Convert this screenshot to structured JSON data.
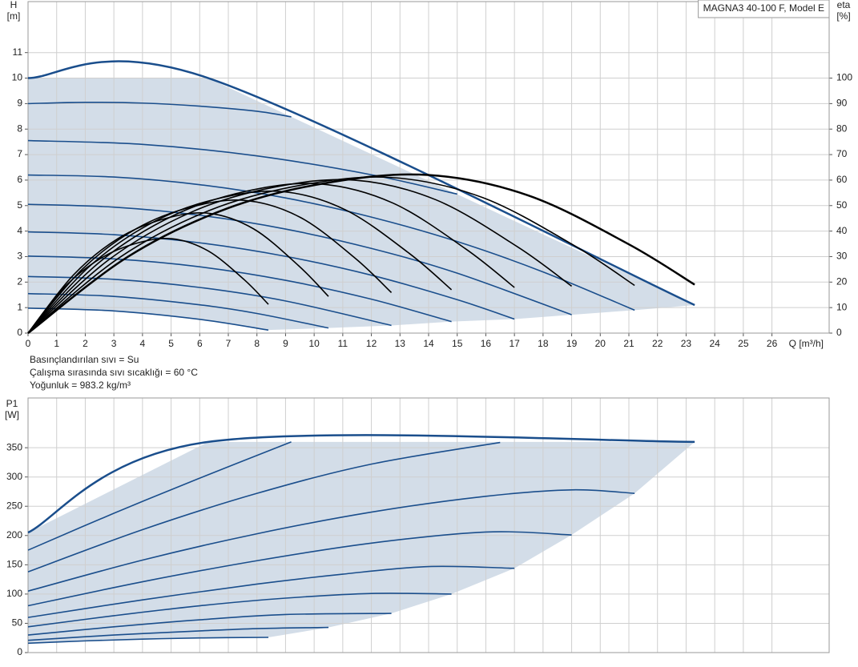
{
  "chart_data": [
    {
      "type": "line",
      "title": "MAGNA3 40-100 F, Model E",
      "y_label": "H",
      "y_unit": "[m]",
      "y2_label": "eta",
      "y2_unit": "[%]",
      "x_label": "Q [m³/h]",
      "notes": [
        "Basınçlandırılan sıvı = Su",
        "Çalışma sırasında sıvı sıcaklığı = 60 °C",
        "Yoğunluk = 983.2 kg/m³"
      ],
      "xlim": [
        0,
        28
      ],
      "xticks": [
        0,
        1,
        2,
        3,
        4,
        5,
        6,
        7,
        8,
        9,
        10,
        11,
        12,
        13,
        14,
        15,
        16,
        17,
        18,
        19,
        20,
        21,
        22,
        23,
        24,
        25,
        26
      ],
      "ylim": [
        0,
        13
      ],
      "yticks": [
        0,
        1,
        2,
        3,
        4,
        5,
        6,
        7,
        8,
        9,
        10,
        11
      ],
      "y2lim": [
        0,
        130
      ],
      "y2ticks": [
        0,
        10,
        20,
        30,
        40,
        50,
        60,
        70,
        80,
        90,
        100
      ],
      "grid": true,
      "fill_color": "#d3dde8",
      "series": [
        {
          "color": "#1a4e8c",
          "x": [
            0,
            6.3,
            23.3
          ],
          "values": [
            10,
            10,
            1.1
          ]
        },
        {
          "color": "#1a4e8c",
          "x": [
            0,
            2,
            4,
            6,
            8,
            9.2
          ],
          "values": [
            9.0,
            9.05,
            9.02,
            8.9,
            8.7,
            8.48
          ]
        },
        {
          "color": "#1a4e8c",
          "x": [
            0,
            4,
            8,
            12,
            15
          ],
          "values": [
            7.55,
            7.4,
            6.95,
            6.21,
            5.45
          ]
        },
        {
          "color": "#1a4e8c",
          "x": [
            0,
            3,
            6,
            9,
            12,
            15,
            18,
            21.2
          ],
          "values": [
            6.2,
            6.12,
            5.82,
            5.3,
            4.55,
            3.59,
            2.4,
            0.9
          ]
        },
        {
          "color": "#1a4e8c",
          "x": [
            0,
            3,
            6,
            9,
            12,
            15,
            19
          ],
          "values": [
            5.05,
            4.94,
            4.62,
            4.08,
            3.32,
            2.35,
            0.72
          ]
        },
        {
          "color": "#1a4e8c",
          "x": [
            0,
            3,
            6,
            9,
            12,
            15,
            17
          ],
          "values": [
            3.97,
            3.86,
            3.54,
            3.01,
            2.27,
            1.31,
            0.55
          ]
        },
        {
          "color": "#1a4e8c",
          "x": [
            0,
            3,
            6,
            9,
            12,
            14.8
          ],
          "values": [
            3.02,
            2.91,
            2.6,
            2.07,
            1.33,
            0.45
          ]
        },
        {
          "color": "#1a4e8c",
          "x": [
            0,
            3,
            6,
            9,
            12.7
          ],
          "values": [
            2.22,
            2.11,
            1.79,
            1.26,
            0.3
          ]
        },
        {
          "color": "#1a4e8c",
          "x": [
            0,
            3,
            6,
            8,
            10.5
          ],
          "values": [
            1.55,
            1.44,
            1.11,
            0.77,
            0.2
          ]
        },
        {
          "color": "#1a4e8c",
          "x": [
            0,
            3,
            6,
            8.4
          ],
          "values": [
            0.98,
            0.87,
            0.54,
            0.12
          ]
        },
        {
          "color": "#000000",
          "axis": "y2",
          "x": [
            0,
            3.5,
            6.99,
            10.49,
            13.98,
            17.48,
            20.97,
            23.3
          ],
          "values": [
            0,
            30,
            49,
            59,
            62,
            54,
            35,
            19
          ]
        },
        {
          "color": "#000000",
          "axis": "y2",
          "x": [
            0,
            3.18,
            6.36,
            9.54,
            12.72,
            15.9,
            19.08,
            21.2
          ],
          "values": [
            0,
            29.5,
            48.2,
            58.0,
            61,
            53.1,
            34.4,
            18.7
          ]
        },
        {
          "color": "#000000",
          "axis": "y2",
          "x": [
            0,
            2.85,
            5.7,
            8.55,
            11.4,
            14.25,
            17.1,
            19
          ],
          "values": [
            0,
            29.0,
            47.4,
            57.1,
            60,
            52.3,
            33.9,
            18.4
          ]
        },
        {
          "color": "#000000",
          "axis": "y2",
          "x": [
            0,
            2.55,
            5.1,
            7.65,
            10.2,
            12.75,
            15.3,
            17
          ],
          "values": [
            0,
            28.3,
            46.2,
            55.7,
            58.5,
            51,
            33,
            17.9
          ]
        },
        {
          "color": "#000000",
          "axis": "y2",
          "x": [
            0,
            2.22,
            4.44,
            6.66,
            8.88,
            11.1,
            13.32,
            14.8
          ],
          "values": [
            0,
            26.9,
            43.9,
            52.8,
            55.5,
            48.3,
            31.3,
            17.0
          ]
        },
        {
          "color": "#000000",
          "axis": "y2",
          "x": [
            0,
            1.91,
            3.81,
            5.72,
            7.62,
            9.53,
            11.43,
            12.7
          ],
          "values": [
            0,
            25.2,
            41.1,
            49.5,
            52,
            45.3,
            29.4,
            15.9
          ]
        },
        {
          "color": "#000000",
          "axis": "y2",
          "x": [
            0,
            1.58,
            3.15,
            4.73,
            6.3,
            7.88,
            9.45,
            10.5
          ],
          "values": [
            0,
            22.7,
            37.1,
            44.7,
            47,
            40.9,
            26.5,
            14.4
          ]
        },
        {
          "color": "#000000",
          "axis": "y2",
          "x": [
            0,
            1.26,
            2.52,
            3.78,
            5.04,
            6.3,
            7.56,
            8.4
          ],
          "values": [
            0,
            17.9,
            29.2,
            35.2,
            37,
            32.2,
            20.9,
            11.3
          ]
        }
      ]
    },
    {
      "type": "line",
      "y_label": "P1",
      "y_unit": "[W]",
      "xlim": [
        0,
        28
      ],
      "ylim": [
        0,
        435
      ],
      "yticks": [
        0,
        50,
        100,
        150,
        200,
        250,
        300,
        350
      ],
      "grid": true,
      "fill_color": "#d3dde8",
      "series": [
        {
          "color": "#1a4e8c",
          "x": [
            0,
            6.3,
            23.3
          ],
          "values": [
            205,
            360,
            360
          ]
        },
        {
          "color": "#1a4e8c",
          "x": [
            0,
            3,
            6,
            9.2
          ],
          "values": [
            175,
            238,
            298,
            360
          ]
        },
        {
          "color": "#1a4e8c",
          "x": [
            0,
            4,
            8,
            12,
            16.5
          ],
          "values": [
            138,
            210,
            272,
            322,
            359
          ]
        },
        {
          "color": "#1a4e8c",
          "x": [
            0,
            4,
            8,
            12,
            16,
            19,
            21.2
          ],
          "values": [
            105,
            158,
            203,
            240,
            267,
            278,
            272
          ]
        },
        {
          "color": "#1a4e8c",
          "x": [
            0,
            4,
            8,
            12,
            16,
            19
          ],
          "values": [
            80,
            121,
            157,
            187,
            206,
            201
          ]
        },
        {
          "color": "#1a4e8c",
          "x": [
            0,
            4,
            8,
            11,
            14,
            17
          ],
          "values": [
            60,
            90,
            117,
            134,
            147,
            144
          ]
        },
        {
          "color": "#1a4e8c",
          "x": [
            0,
            3,
            6,
            9,
            12,
            14.8
          ],
          "values": [
            44,
            63,
            80,
            93,
            101,
            100
          ]
        },
        {
          "color": "#1a4e8c",
          "x": [
            0,
            3,
            6,
            9,
            12.7
          ],
          "values": [
            30,
            44,
            56,
            65,
            67
          ]
        },
        {
          "color": "#1a4e8c",
          "x": [
            0,
            3,
            6,
            8,
            10.5
          ],
          "values": [
            21,
            30,
            37,
            41,
            43
          ]
        },
        {
          "color": "#1a4e8c",
          "x": [
            0,
            2,
            4,
            6,
            8.4
          ],
          "values": [
            16,
            20,
            23,
            25,
            26
          ]
        }
      ]
    }
  ]
}
